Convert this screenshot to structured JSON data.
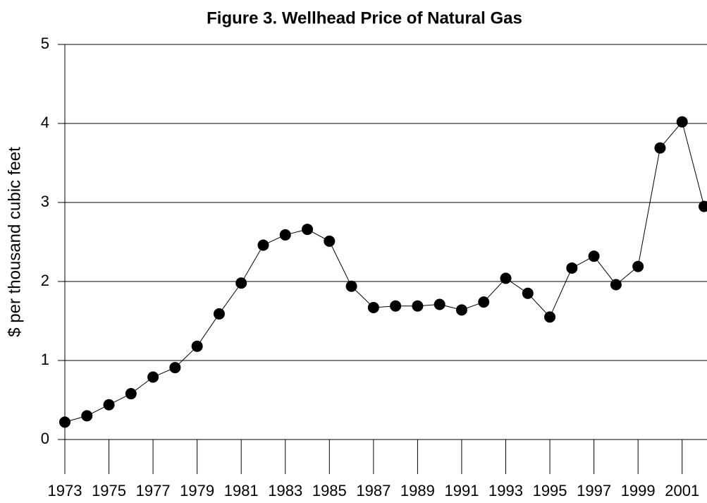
{
  "chart_data": {
    "type": "line",
    "title": "Figure 3.  Wellhead Price of Natural Gas",
    "ylabel": "$ per thousand cubic feet",
    "x": [
      1973,
      1974,
      1975,
      1976,
      1977,
      1978,
      1979,
      1980,
      1981,
      1982,
      1983,
      1984,
      1985,
      1986,
      1987,
      1988,
      1989,
      1990,
      1991,
      1992,
      1993,
      1994,
      1995,
      1996,
      1997,
      1998,
      1999,
      2000,
      2001,
      2002
    ],
    "series": [
      {
        "name": "Wellhead price",
        "color": "#000000",
        "values": [
          0.22,
          0.3,
          0.44,
          0.58,
          0.79,
          0.91,
          1.18,
          1.59,
          1.98,
          2.46,
          2.59,
          2.66,
          2.51,
          1.94,
          1.67,
          1.69,
          1.69,
          1.71,
          1.64,
          1.74,
          2.04,
          1.85,
          1.55,
          2.17,
          2.32,
          1.96,
          2.19,
          3.69,
          4.02,
          2.95
        ]
      }
    ],
    "xlim": [
      1973,
      2002
    ],
    "xticks": [
      1973,
      1975,
      1977,
      1979,
      1981,
      1983,
      1985,
      1987,
      1989,
      1991,
      1993,
      1995,
      1997,
      1999,
      2001
    ],
    "ylim": [
      0,
      5
    ],
    "yticks": [
      0,
      1,
      2,
      3,
      4,
      5
    ],
    "grid": true
  }
}
